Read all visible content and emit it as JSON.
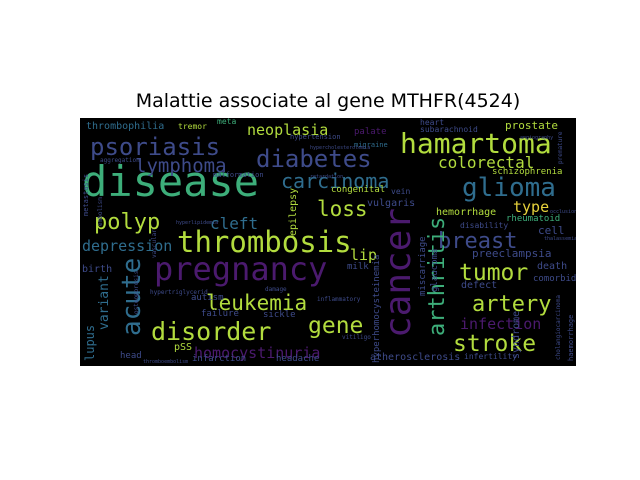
{
  "title": "Malattie associate al gene MTHFR(4524)",
  "cloud": {
    "background": "#000000",
    "words": [
      {
        "text": "disease",
        "color": "#3dae7a"
      },
      {
        "text": "thrombosis",
        "color": "#b2dc3e"
      },
      {
        "text": "pregnancy",
        "color": "#4b1a6e"
      },
      {
        "text": "cancer",
        "color": "#4b1a6e"
      },
      {
        "text": "hamartoma",
        "color": "#b2dc3e"
      },
      {
        "text": "psoriasis",
        "color": "#3e4b8a"
      },
      {
        "text": "diabetes",
        "color": "#3e4b8a"
      },
      {
        "text": "carcinoma",
        "color": "#2f6d8e"
      },
      {
        "text": "glioma",
        "color": "#2f6d8e"
      },
      {
        "text": "lymphoma",
        "color": "#3e4b8a"
      },
      {
        "text": "polyp",
        "color": "#b2dc3e"
      },
      {
        "text": "breast",
        "color": "#3e4b8a"
      },
      {
        "text": "disorder",
        "color": "#b2dc3e"
      },
      {
        "text": "leukemia",
        "color": "#b2dc3e"
      },
      {
        "text": "acute",
        "color": "#2f6d8e"
      },
      {
        "text": "arthritis",
        "color": "#3dae7a"
      },
      {
        "text": "stroke",
        "color": "#b2dc3e"
      },
      {
        "text": "artery",
        "color": "#b2dc3e"
      },
      {
        "text": "tumor",
        "color": "#b2dc3e"
      },
      {
        "text": "gene",
        "color": "#b2dc3e"
      },
      {
        "text": "loss",
        "color": "#b2dc3e"
      },
      {
        "text": "colorectal",
        "color": "#b2dc3e"
      },
      {
        "text": "neoplasia",
        "color": "#b2dc3e"
      },
      {
        "text": "infection",
        "color": "#4b1a6e"
      },
      {
        "text": "homocystinuria",
        "color": "#4b1a6e"
      },
      {
        "text": "cleft",
        "color": "#2f6d8e"
      },
      {
        "text": "depression",
        "color": "#2f6d8e"
      },
      {
        "text": "type",
        "color": "#e6d13b"
      },
      {
        "text": "lip",
        "color": "#b2dc3e"
      },
      {
        "text": "variant",
        "color": "#2f6d8e"
      },
      {
        "text": "lupus",
        "color": "#2f6d8e"
      },
      {
        "text": "thrombophilia",
        "color": "#2f6d8e"
      },
      {
        "text": "tremor",
        "color": "#b2dc3e"
      },
      {
        "text": "meta",
        "color": "#3dae7a"
      },
      {
        "text": "palate",
        "color": "#4b1a6e"
      },
      {
        "text": "migraine",
        "color": "#2f6d8e"
      },
      {
        "text": "hypertension",
        "color": "#3e4b8a"
      },
      {
        "text": "prostate",
        "color": "#b2dc3e"
      },
      {
        "text": "subarachnoid",
        "color": "#3e4b8a"
      },
      {
        "text": "heart",
        "color": "#3e4b8a"
      },
      {
        "text": "schizophrenia",
        "color": "#b2dc3e"
      },
      {
        "text": "malformation",
        "color": "#3e4b8a"
      },
      {
        "text": "congenital",
        "color": "#b2dc3e"
      },
      {
        "text": "hemorrhage",
        "color": "#b2dc3e"
      },
      {
        "text": "rheumatoid",
        "color": "#3dae7a"
      },
      {
        "text": "disability",
        "color": "#3e4b8a"
      },
      {
        "text": "cell",
        "color": "#3e4b8a"
      },
      {
        "text": "preeclampsia",
        "color": "#3e4b8a"
      },
      {
        "text": "death",
        "color": "#3e4b8a"
      },
      {
        "text": "birth",
        "color": "#3e4b8a"
      },
      {
        "text": "epilepsy",
        "color": "#b2dc3e"
      },
      {
        "text": "vulgaris",
        "color": "#3e4b8a"
      },
      {
        "text": "vein",
        "color": "#3e4b8a"
      },
      {
        "text": "milk",
        "color": "#3e4b8a"
      },
      {
        "text": "hyperhomocysteinemia",
        "color": "#3e4b8a"
      },
      {
        "text": "miscarriage",
        "color": "#3e4b8a"
      },
      {
        "text": "glaucoma",
        "color": "#3e4b8a"
      },
      {
        "text": "defect",
        "color": "#3e4b8a"
      },
      {
        "text": "comorbid",
        "color": "#3e4b8a"
      },
      {
        "text": "autism",
        "color": "#3e4b8a"
      },
      {
        "text": "failure",
        "color": "#3e4b8a"
      },
      {
        "text": "sickle",
        "color": "#3e4b8a"
      },
      {
        "text": "pSS",
        "color": "#b2dc3e"
      },
      {
        "text": "head",
        "color": "#3e4b8a"
      },
      {
        "text": "infarction",
        "color": "#3e4b8a"
      },
      {
        "text": "headache",
        "color": "#3e4b8a"
      },
      {
        "text": "atherosclerosis",
        "color": "#3e4b8a"
      },
      {
        "text": "infertility",
        "color": "#3e4b8a"
      },
      {
        "text": "syndrome",
        "color": "#3e4b8a"
      },
      {
        "text": "metastasis",
        "color": "#3e4b8a"
      },
      {
        "text": "inflammatory",
        "color": "#3e4b8a"
      },
      {
        "text": "vitiligo",
        "color": "#3e4b8a"
      },
      {
        "text": "thromboembolism",
        "color": "#3e4b8a"
      },
      {
        "text": "haemorrhage",
        "color": "#3e4b8a"
      },
      {
        "text": "damage",
        "color": "#3e4b8a"
      },
      {
        "text": "hypertriglycerid",
        "color": "#3e4b8a"
      },
      {
        "text": "cholangiocarcinoma",
        "color": "#3e4b8a"
      },
      {
        "text": "embolism",
        "color": "#3e4b8a"
      },
      {
        "text": "aggregation",
        "color": "#3e4b8a"
      },
      {
        "text": "premature",
        "color": "#3e4b8a"
      },
      {
        "text": "vascular",
        "color": "#3e4b8a"
      },
      {
        "text": "angiography",
        "color": "#3e4b8a"
      },
      {
        "text": "hyperlipidemia",
        "color": "#3e4b8a"
      },
      {
        "text": "hypercholesterolemia",
        "color": "#3e4b8a"
      },
      {
        "text": "thalassemia",
        "color": "#3e4b8a"
      },
      {
        "text": "occlusion",
        "color": "#3e4b8a"
      },
      {
        "text": "retardation",
        "color": "#3e4b8a"
      },
      {
        "text": "osteoporosis",
        "color": "#3e4b8a"
      }
    ]
  }
}
